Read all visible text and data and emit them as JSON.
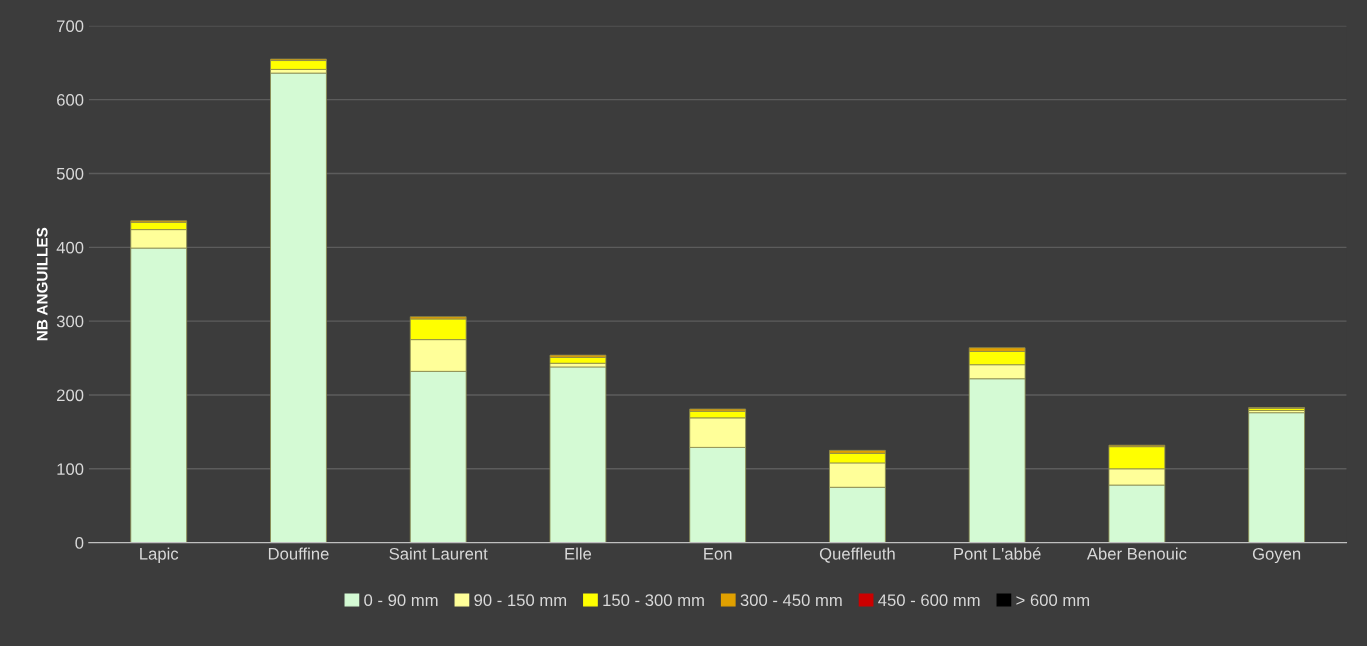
{
  "chart_data": {
    "type": "bar",
    "stacked": true,
    "ylabel": "NB ANGUILLES",
    "categories": [
      "Lapic",
      "Douffine",
      "Saint Laurent",
      "Elle",
      "Eon",
      "Queffleuth",
      "Pont L'abbé",
      "Aber Benouic",
      "Goyen"
    ],
    "series": [
      {
        "name": "0 - 90 mm",
        "color": "#d4fad4",
        "values": [
          399,
          636,
          232,
          238,
          129,
          75,
          222,
          78,
          176
        ]
      },
      {
        "name": "90 - 150 mm",
        "color": "#ffff99",
        "values": [
          25,
          5,
          43,
          5,
          40,
          33,
          19,
          22,
          3
        ]
      },
      {
        "name": "150 - 300 mm",
        "color": "#ffff00",
        "values": [
          10,
          12,
          28,
          8,
          9,
          13,
          18,
          30,
          3
        ]
      },
      {
        "name": "300 - 450 mm",
        "color": "#e0a000",
        "values": [
          2,
          2,
          3,
          3,
          3,
          4,
          5,
          2,
          1
        ]
      },
      {
        "name": "450 - 600 mm",
        "color": "#cc0000",
        "values": [
          0,
          0,
          0,
          0,
          0,
          0,
          0,
          0,
          0
        ]
      },
      {
        "name": "> 600 mm",
        "color": "#000000",
        "values": [
          0,
          0,
          0,
          0,
          0,
          0,
          0,
          0,
          0
        ]
      }
    ],
    "ylim": [
      0,
      700
    ],
    "yticks": [
      0,
      100,
      200,
      300,
      400,
      500,
      600,
      700
    ],
    "grid": "y",
    "legend": "bottom"
  }
}
